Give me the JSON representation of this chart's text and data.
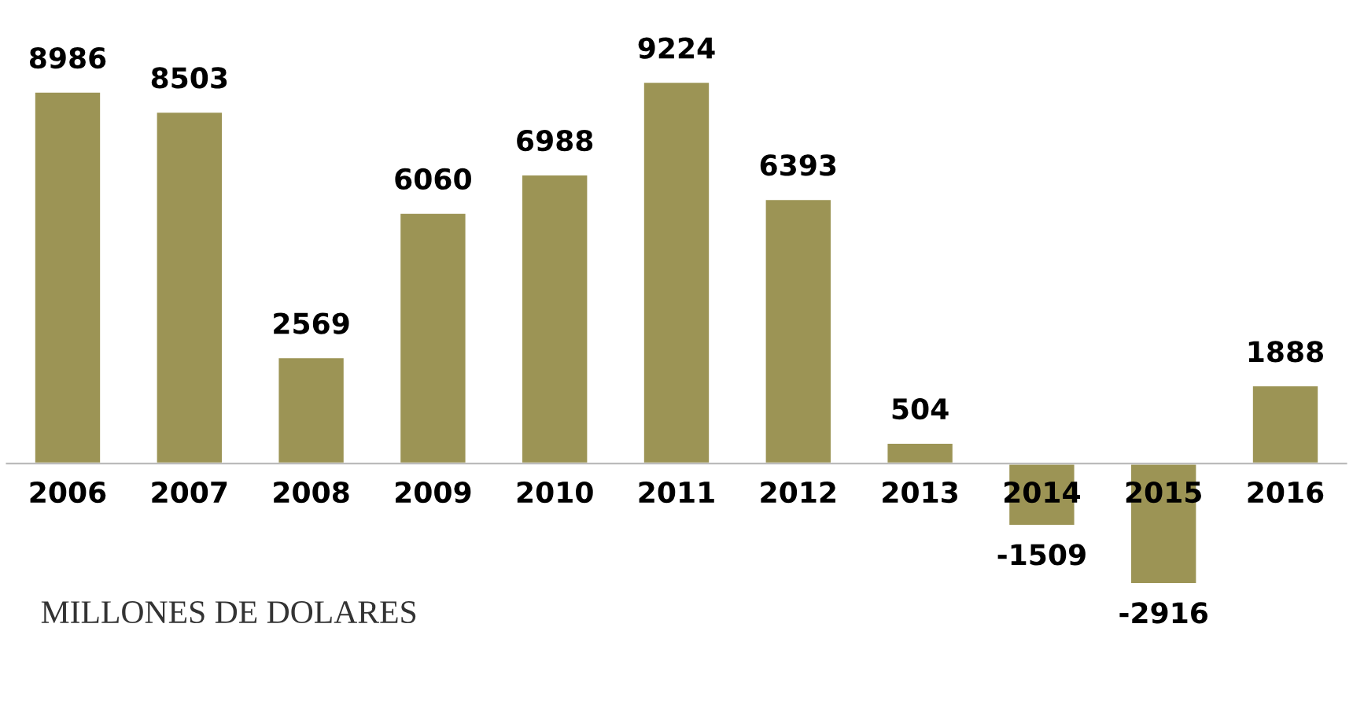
{
  "chart_data": {
    "type": "bar",
    "categories": [
      "2006",
      "2007",
      "2008",
      "2009",
      "2010",
      "2011",
      "2012",
      "2013",
      "2014",
      "2015",
      "2016"
    ],
    "values": [
      8986,
      8503,
      2569,
      6060,
      6988,
      9224,
      6393,
      504,
      -1509,
      -2916,
      1888
    ],
    "color": "#9c9455",
    "data_labels": true,
    "annotations": [
      "MILLONES DE DOLARES"
    ]
  }
}
